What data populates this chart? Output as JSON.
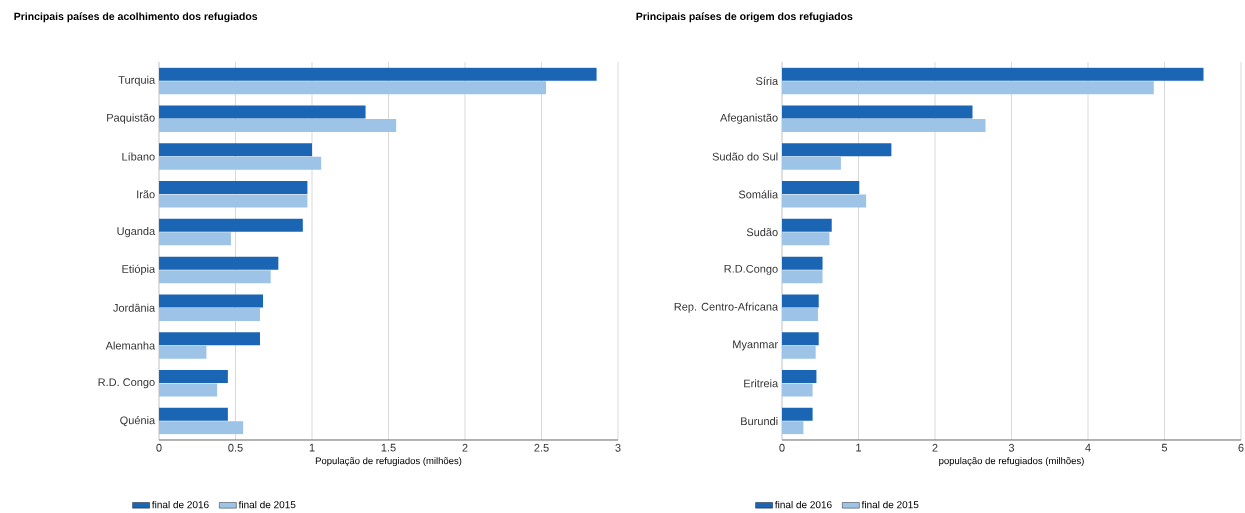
{
  "chart_data": [
    {
      "type": "bar",
      "orientation": "horizontal",
      "title": "Principais países de acolhimento dos refugiados",
      "xlabel": "População de refugiados (milhões)",
      "categories": [
        "Turquia",
        "Paquistão",
        "Líbano",
        "Irão",
        "Uganda",
        "Etiópia",
        "Jordânia",
        "Alemanha",
        "R.D. Congo",
        "Quénia"
      ],
      "series": [
        {
          "name": "final de 2016",
          "color": "#1a66b5",
          "values": [
            2.86,
            1.35,
            1.0,
            0.97,
            0.94,
            0.78,
            0.68,
            0.66,
            0.45,
            0.45
          ]
        },
        {
          "name": "final de 2015",
          "color": "#9dc3e6",
          "values": [
            2.53,
            1.55,
            1.06,
            0.97,
            0.47,
            0.73,
            0.66,
            0.31,
            0.38,
            0.55
          ]
        }
      ],
      "xlim": [
        0,
        3
      ],
      "xticks": [
        0,
        0.5,
        1,
        1.5,
        2,
        2.5,
        3
      ],
      "grid": "x",
      "legend": "bottom"
    },
    {
      "type": "bar",
      "orientation": "horizontal",
      "title": "Principais países de origem dos refugiados",
      "xlabel": "população de refugiados (milhões)",
      "categories": [
        "Síria",
        "Afeganistão",
        "Sudão do Sul",
        "Somália",
        "Sudão",
        "R.D.Congo",
        "Rep. Centro-Africana",
        "Myanmar",
        "Eritreia",
        "Burundi"
      ],
      "series": [
        {
          "name": "final de 2016",
          "color": "#1a66b5",
          "values": [
            5.51,
            2.49,
            1.43,
            1.01,
            0.65,
            0.53,
            0.48,
            0.48,
            0.45,
            0.4
          ]
        },
        {
          "name": "final de 2015",
          "color": "#9dc3e6",
          "values": [
            4.86,
            2.66,
            0.77,
            1.1,
            0.62,
            0.53,
            0.47,
            0.44,
            0.4,
            0.28
          ]
        }
      ],
      "xlim": [
        0,
        6
      ],
      "xticks": [
        0,
        1,
        2,
        3,
        4,
        5,
        6
      ],
      "grid": "x",
      "legend": "bottom"
    }
  ]
}
